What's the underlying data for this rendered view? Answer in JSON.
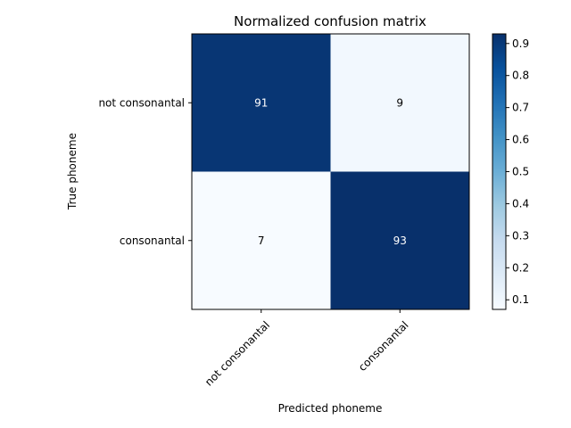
{
  "chart_data": {
    "type": "heatmap",
    "title": "Normalized confusion matrix",
    "xlabel": "Predicted phoneme",
    "ylabel": "True phoneme",
    "x_categories": [
      "not consonantal",
      "consonantal"
    ],
    "y_categories": [
      "not consonantal",
      "consonantal"
    ],
    "values": [
      [
        0.91,
        0.09
      ],
      [
        0.07,
        0.93
      ]
    ],
    "cell_labels": [
      [
        "91",
        "9"
      ],
      [
        "7",
        "93"
      ]
    ],
    "colormap": "Blues",
    "colorbar": {
      "range": [
        0.07,
        0.93
      ],
      "ticks": [
        "0.1",
        "0.2",
        "0.3",
        "0.4",
        "0.5",
        "0.6",
        "0.7",
        "0.8",
        "0.9"
      ]
    },
    "grid": false
  },
  "colors": {
    "low": "#f7fbff",
    "mid": "#6baed6",
    "high": "#08306b",
    "text_dark": "#000000",
    "text_light": "#ffffff"
  }
}
